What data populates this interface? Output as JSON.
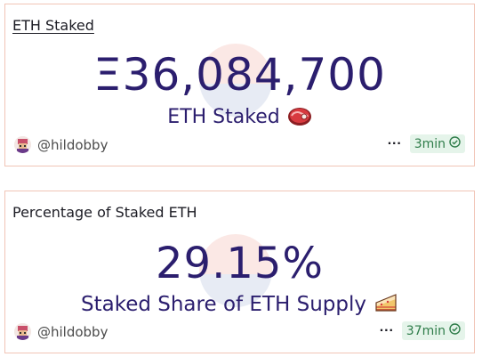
{
  "cards": [
    {
      "title": "ETH Staked",
      "value": "Ξ36,084,700",
      "label": "ETH Staked",
      "emoji": "steak-emoji",
      "author": "@hildobby",
      "updated": "3min"
    },
    {
      "title": "Percentage of Staked ETH",
      "value": "29.15%",
      "label": "Staked Share of ETH Supply",
      "emoji": "cake-emoji",
      "author": "@hildobby",
      "updated": "37min"
    }
  ],
  "colors": {
    "value_text": "#2b1e6e",
    "card_border": "#f1c4b6",
    "badge_bg": "#e5f4ea",
    "badge_text": "#2f7d4a"
  },
  "icons": {
    "menu": "more-dots-icon",
    "fresh": "check-circle-icon"
  }
}
